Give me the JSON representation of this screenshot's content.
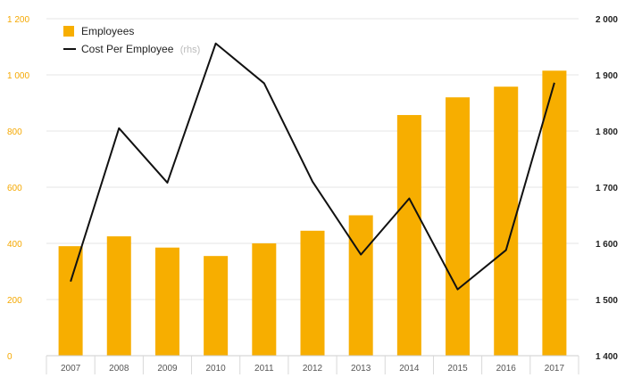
{
  "colors": {
    "bar": "#f7ae00",
    "line": "#111111",
    "grid": "#e6e6e6",
    "left_axis_text": "#f5a800",
    "right_axis_text": "#222222"
  },
  "legend": {
    "position": "top-left",
    "bar_label": "Employees",
    "line_label": "Cost Per Employee",
    "line_note": "(rhs)"
  },
  "chart_data": {
    "type": "bar",
    "categories": [
      "2007",
      "2008",
      "2009",
      "2010",
      "2011",
      "2012",
      "2013",
      "2014",
      "2015",
      "2016",
      "2017"
    ],
    "series": [
      {
        "name": "Employees",
        "type": "bar",
        "axis": "left",
        "values": [
          390,
          425,
          385,
          355,
          400,
          445,
          500,
          857,
          920,
          958,
          1015
        ]
      },
      {
        "name": "Cost Per Employee",
        "type": "line",
        "axis": "right",
        "values": [
          1532,
          1805,
          1708,
          1956,
          1885,
          1710,
          1580,
          1680,
          1518,
          1588,
          1886
        ]
      }
    ],
    "ylim_left": [
      0,
      1200
    ],
    "yticks_left": [
      0,
      200,
      400,
      600,
      800,
      1000,
      1200
    ],
    "yticks_left_labels": [
      "0",
      "200",
      "400",
      "600",
      "800",
      "1 000",
      "1 200"
    ],
    "ylim_right": [
      1400,
      2000
    ],
    "yticks_right": [
      1400,
      1500,
      1600,
      1700,
      1800,
      1900,
      2000
    ],
    "yticks_right_labels": [
      "1 400",
      "1 500",
      "1 600",
      "1 700",
      "1 800",
      "1 900",
      "2 000"
    ],
    "grid": true
  }
}
